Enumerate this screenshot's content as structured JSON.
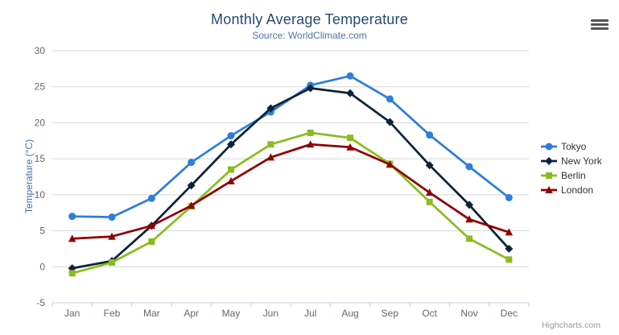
{
  "chart_data": {
    "type": "line",
    "title": "Monthly Average Temperature",
    "subtitle": "Source: WorldClimate.com",
    "xlabel": "",
    "ylabel": "Temperature (°C)",
    "ylim": [
      -5,
      30
    ],
    "ytick_step": 5,
    "grid": true,
    "legend_position": "right",
    "categories": [
      "Jan",
      "Feb",
      "Mar",
      "Apr",
      "May",
      "Jun",
      "Jul",
      "Aug",
      "Sep",
      "Oct",
      "Nov",
      "Dec"
    ],
    "series": [
      {
        "name": "Tokyo",
        "color": "#2f7ed8",
        "marker": "circle",
        "values": [
          7.0,
          6.9,
          9.5,
          14.5,
          18.2,
          21.5,
          25.2,
          26.5,
          23.3,
          18.3,
          13.9,
          9.6
        ]
      },
      {
        "name": "New York",
        "color": "#0d233a",
        "marker": "diamond",
        "values": [
          -0.2,
          0.8,
          5.7,
          11.3,
          17.0,
          22.0,
          24.8,
          24.1,
          20.1,
          14.1,
          8.6,
          2.5
        ]
      },
      {
        "name": "Berlin",
        "color": "#8bbc21",
        "marker": "square",
        "values": [
          -0.9,
          0.6,
          3.5,
          8.4,
          13.5,
          17.0,
          18.6,
          17.9,
          14.3,
          9.0,
          3.9,
          1.0
        ]
      },
      {
        "name": "London",
        "color": "#910000",
        "marker": "triangle",
        "values": [
          3.9,
          4.2,
          5.7,
          8.5,
          11.9,
          15.2,
          17.0,
          16.6,
          14.2,
          10.3,
          6.6,
          4.8
        ]
      }
    ],
    "colors": {
      "title": "#274b6d",
      "subtitle": "#4d759e",
      "y_axis_title": "#4572A7",
      "axis_labels": "#666666",
      "gridline": "#d8d8d8",
      "axis_line": "#c0d0e0",
      "legend_text": "#333333",
      "credit_text": "#999999"
    }
  },
  "credit": {
    "label": "Highcharts.com"
  },
  "export_menu": {
    "tooltip": "Chart context menu"
  }
}
